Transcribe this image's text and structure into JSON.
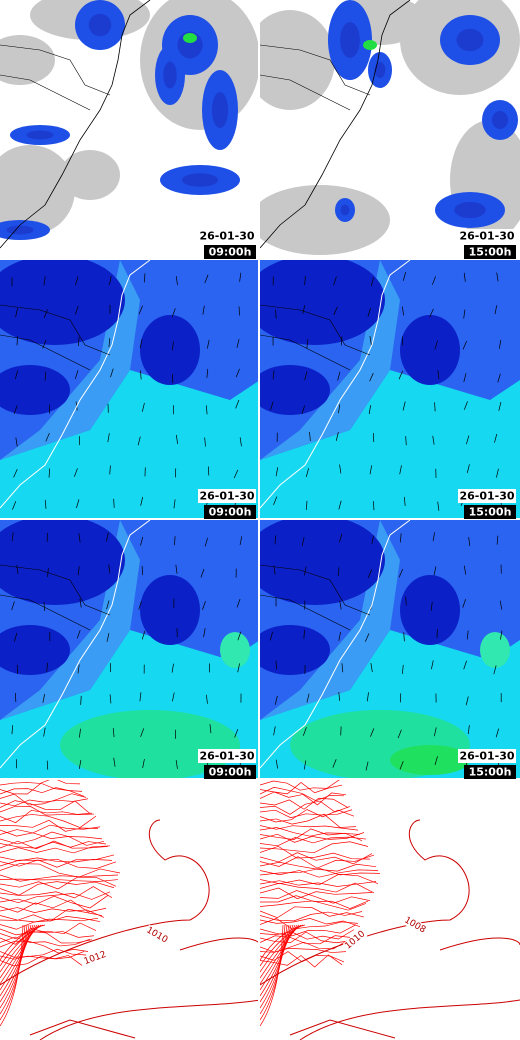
{
  "panels": [
    {
      "date": "26-01-30",
      "time": "09:00h"
    },
    {
      "date": "26-01-30",
      "time": "15:00h"
    },
    {
      "date": "26-01-30",
      "time": "09:00h"
    },
    {
      "date": "26-01-30",
      "time": "15:00h"
    },
    {
      "date": "26-01-30",
      "time": "09:00h"
    },
    {
      "date": "26-01-30",
      "time": "15:00h"
    }
  ],
  "pressure_maps": [
    {
      "contour_labels": [
        "1012",
        "1010"
      ]
    },
    {
      "contour_labels": [
        "1010",
        "1008"
      ]
    }
  ]
}
